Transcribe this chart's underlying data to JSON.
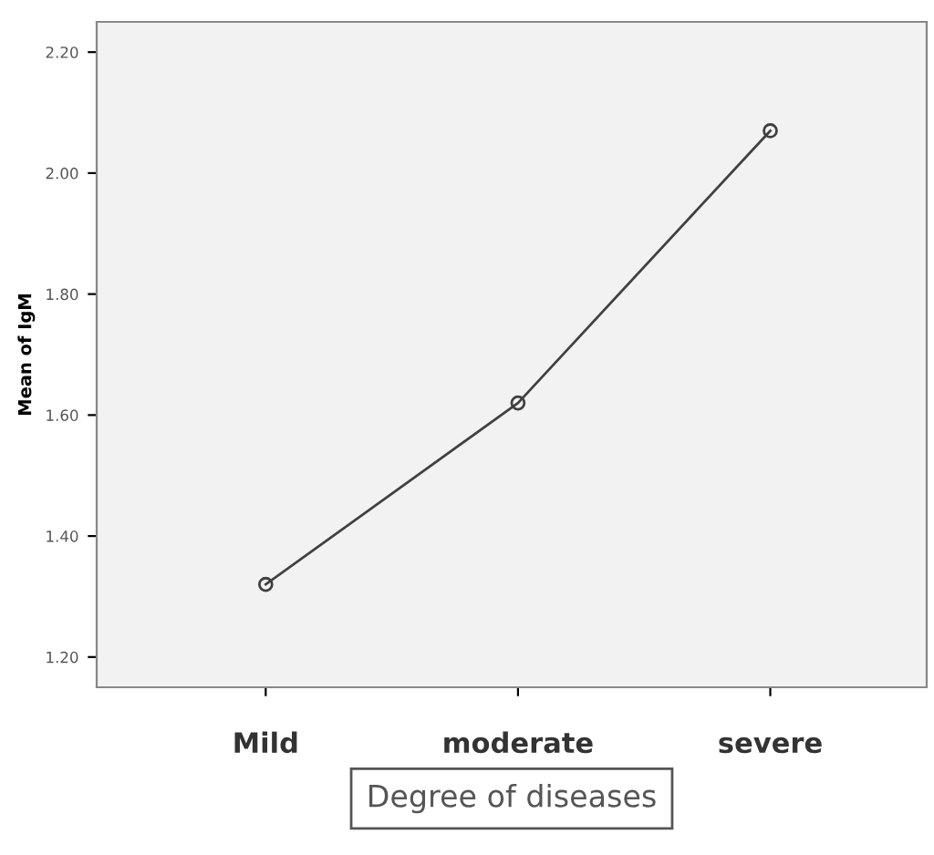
{
  "chart_data": {
    "type": "line",
    "xlabel": "Degree of diseases",
    "ylabel": "Mean of IgM",
    "categories": [
      "Mild",
      "moderate",
      "severe"
    ],
    "series": [
      {
        "color": "#404040",
        "values": [
          1.32,
          1.62,
          2.07
        ]
      }
    ],
    "ylim": [
      1.15,
      2.25
    ],
    "yticks": [
      {
        "value": 1.2,
        "label": "1.20"
      },
      {
        "value": 1.4,
        "label": "1.40"
      },
      {
        "value": 1.6,
        "label": "1.60"
      },
      {
        "value": 1.8,
        "label": "1.80"
      },
      {
        "value": 2.0,
        "label": "2.00"
      },
      {
        "value": 2.2,
        "label": "2.20"
      }
    ],
    "marker": "circle",
    "line_style": "solid",
    "grid": false,
    "legend": false
  }
}
